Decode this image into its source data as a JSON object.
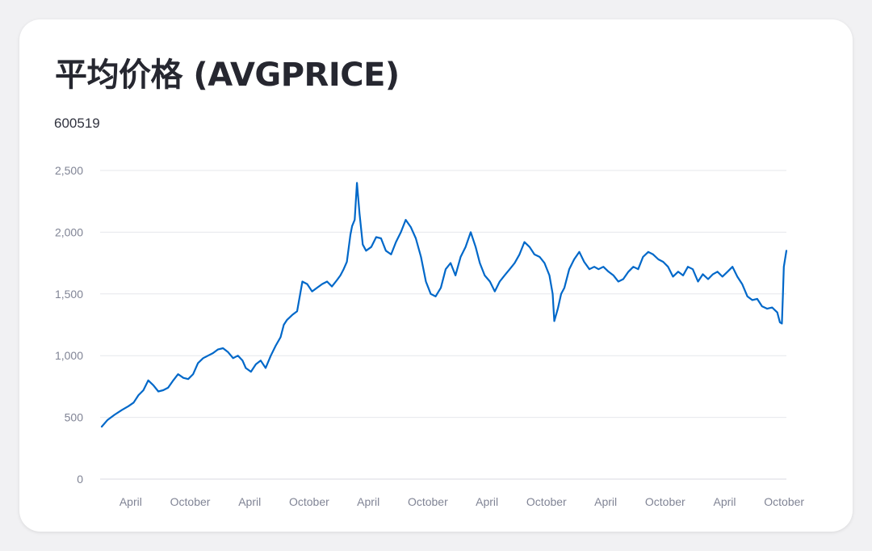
{
  "title": "平均价格 (AVGPRICE)",
  "series_caption": "600519",
  "colors": {
    "line": "#0068c9",
    "grid": "#e6e7eb",
    "text": "#262730",
    "tick": "#808495"
  },
  "chart_data": {
    "type": "line",
    "title": "平均价格 (AVGPRICE)",
    "xlabel": "",
    "ylabel": "",
    "ylim": [
      0,
      2500
    ],
    "y_ticks": [
      0,
      500,
      1000,
      1500,
      2000,
      2500
    ],
    "y_tick_labels": [
      "0",
      "500",
      "1,000",
      "1,500",
      "2,000",
      "2,500"
    ],
    "x_range": [
      "2018-12-28",
      "2024-10-08"
    ],
    "x_ticks": [
      "2019-04-01",
      "2019-10-01",
      "2020-04-01",
      "2020-10-01",
      "2021-04-01",
      "2021-10-01",
      "2022-04-01",
      "2022-10-01",
      "2023-04-01",
      "2023-10-01",
      "2024-04-01",
      "2024-10-01"
    ],
    "x_tick_labels": [
      "April",
      "October",
      "April",
      "October",
      "April",
      "October",
      "April",
      "October",
      "April",
      "October",
      "April",
      "October"
    ],
    "grid": true,
    "legend": "none",
    "series": [
      {
        "x": [
          "2019-01-02",
          "2019-01-20",
          "2019-02-10",
          "2019-03-05",
          "2019-03-25",
          "2019-04-10",
          "2019-04-25",
          "2019-05-10",
          "2019-05-25",
          "2019-06-10",
          "2019-06-25",
          "2019-07-10",
          "2019-07-25",
          "2019-08-10",
          "2019-08-25",
          "2019-09-10",
          "2019-09-25",
          "2019-10-10",
          "2019-10-25",
          "2019-11-10",
          "2019-11-25",
          "2019-12-10",
          "2019-12-25",
          "2020-01-10",
          "2020-01-25",
          "2020-02-10",
          "2020-02-25",
          "2020-03-10",
          "2020-03-20",
          "2020-04-05",
          "2020-04-20",
          "2020-05-05",
          "2020-05-20",
          "2020-06-05",
          "2020-06-20",
          "2020-07-05",
          "2020-07-15",
          "2020-07-25",
          "2020-08-10",
          "2020-08-25",
          "2020-09-10",
          "2020-09-25",
          "2020-10-10",
          "2020-10-25",
          "2020-11-10",
          "2020-11-25",
          "2020-12-10",
          "2020-12-25",
          "2021-01-05",
          "2021-01-15",
          "2021-01-25",
          "2021-02-05",
          "2021-02-10",
          "2021-02-18",
          "2021-02-25",
          "2021-03-05",
          "2021-03-15",
          "2021-03-25",
          "2021-04-10",
          "2021-04-25",
          "2021-05-10",
          "2021-05-25",
          "2021-06-10",
          "2021-06-25",
          "2021-07-10",
          "2021-07-25",
          "2021-08-10",
          "2021-08-25",
          "2021-09-10",
          "2021-09-25",
          "2021-10-10",
          "2021-10-25",
          "2021-11-10",
          "2021-11-25",
          "2021-12-10",
          "2021-12-25",
          "2022-01-10",
          "2022-01-25",
          "2022-02-10",
          "2022-02-25",
          "2022-03-10",
          "2022-03-25",
          "2022-04-10",
          "2022-04-25",
          "2022-05-10",
          "2022-05-25",
          "2022-06-10",
          "2022-06-25",
          "2022-07-10",
          "2022-07-25",
          "2022-08-10",
          "2022-08-25",
          "2022-09-10",
          "2022-09-25",
          "2022-10-10",
          "2022-10-20",
          "2022-10-25",
          "2022-11-05",
          "2022-11-15",
          "2022-11-25",
          "2022-12-10",
          "2022-12-25",
          "2023-01-10",
          "2023-01-25",
          "2023-02-10",
          "2023-02-25",
          "2023-03-10",
          "2023-03-25",
          "2023-04-10",
          "2023-04-25",
          "2023-05-10",
          "2023-05-25",
          "2023-06-10",
          "2023-06-25",
          "2023-07-10",
          "2023-07-25",
          "2023-08-10",
          "2023-08-25",
          "2023-09-10",
          "2023-09-25",
          "2023-10-10",
          "2023-10-25",
          "2023-11-10",
          "2023-11-25",
          "2023-12-10",
          "2023-12-25",
          "2024-01-10",
          "2024-01-25",
          "2024-02-10",
          "2024-02-25",
          "2024-03-10",
          "2024-03-25",
          "2024-04-10",
          "2024-04-25",
          "2024-05-10",
          "2024-05-25",
          "2024-06-10",
          "2024-06-25",
          "2024-07-10",
          "2024-07-25",
          "2024-08-10",
          "2024-08-25",
          "2024-09-10",
          "2024-09-18",
          "2024-09-24",
          "2024-09-27",
          "2024-09-30",
          "2024-10-08"
        ],
        "values": [
          425,
          480,
          520,
          560,
          590,
          620,
          680,
          720,
          800,
          760,
          710,
          720,
          740,
          800,
          850,
          820,
          810,
          850,
          940,
          980,
          1000,
          1020,
          1050,
          1060,
          1030,
          980,
          1000,
          960,
          900,
          870,
          930,
          960,
          900,
          1000,
          1080,
          1150,
          1250,
          1290,
          1330,
          1360,
          1600,
          1580,
          1520,
          1550,
          1580,
          1600,
          1560,
          1610,
          1650,
          1700,
          1760,
          1980,
          2050,
          2100,
          2400,
          2150,
          1900,
          1850,
          1880,
          1960,
          1950,
          1850,
          1820,
          1920,
          2000,
          2100,
          2040,
          1950,
          1800,
          1600,
          1500,
          1480,
          1550,
          1700,
          1750,
          1650,
          1800,
          1880,
          2000,
          1880,
          1750,
          1650,
          1600,
          1520,
          1600,
          1650,
          1700,
          1750,
          1820,
          1920,
          1880,
          1820,
          1800,
          1750,
          1650,
          1500,
          1280,
          1380,
          1500,
          1550,
          1700,
          1780,
          1840,
          1760,
          1700,
          1720,
          1700,
          1720,
          1680,
          1650,
          1600,
          1620,
          1680,
          1720,
          1700,
          1800,
          1840,
          1820,
          1780,
          1760,
          1720,
          1640,
          1680,
          1650,
          1720,
          1700,
          1600,
          1660,
          1620,
          1660,
          1680,
          1640,
          1680,
          1720,
          1640,
          1580,
          1480,
          1450,
          1460,
          1400,
          1380,
          1390,
          1350,
          1270,
          1260,
          1480,
          1720,
          1850
        ]
      }
    ]
  }
}
